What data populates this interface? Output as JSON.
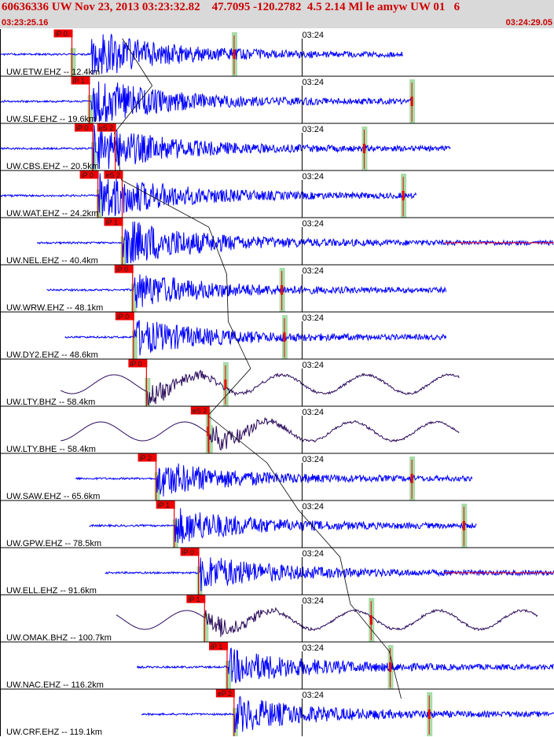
{
  "header": {
    "title": "60636336 UW Nov 23, 2013 03:23:32.82    47.7095 -120.2782  4.5 2.14 Ml le amyw UW 01   6",
    "start_time": "03:23:25.16",
    "end_time": "03:24:29.05"
  },
  "colors": {
    "trace_short_period": "#0000ff",
    "trace_broadband": "#2a0a5a",
    "pick": "#ee0000",
    "window": "#a8dca8",
    "grid": "#000000"
  },
  "chart_data": {
    "type": "line",
    "title": "60636336 UW Nov 23, 2013 03:23:32.82    47.7095 -120.2782  4.5 2.14 Ml le amyw UW 01   6",
    "time_axis": {
      "start_s": 0,
      "end_s": 63.89,
      "minute_mark_label": "03:24",
      "minute_mark_s": 34.84
    },
    "travel_time_curve": "black curve across panels",
    "series": [
      {
        "name": "UW.ETW.EHZ -- 12.4km",
        "component": "short-period",
        "p_label": "iP 0",
        "p_s": 8.2,
        "s_label": "",
        "s_s": null,
        "event_s": 10.5,
        "sig_start_s": 0,
        "sig_end_s": 46.5,
        "end_mark_s": 27.0
      },
      {
        "name": "UW.SLF.EHZ -- 19.6km",
        "component": "short-period",
        "p_label": "iP 1",
        "p_s": 10.2,
        "s_label": "",
        "s_s": null,
        "event_s": 10.5,
        "sig_start_s": 0,
        "sig_end_s": 47.5,
        "end_mark_s": 47.5
      },
      {
        "name": "UW.CBS.EHZ -- 20.5km",
        "component": "short-period",
        "p_label": "iP 0",
        "p_s": 10.6,
        "s_label": "eS 2",
        "s_s": 13.2,
        "event_s": 10.8,
        "sig_start_s": 0,
        "sig_end_s": 52.0,
        "end_mark_s": 42.0
      },
      {
        "name": "UW.WAT.EHZ -- 24.2km",
        "component": "short-period",
        "p_label": "iP 0",
        "p_s": 11.2,
        "s_label": "eS 2",
        "s_s": 14.0,
        "event_s": 11.4,
        "sig_start_s": 0,
        "sig_end_s": 48.0,
        "end_mark_s": 46.5
      },
      {
        "name": "UW.NEL.EHZ -- 40.4km",
        "component": "short-period",
        "p_label": "iP 1",
        "p_s": 14.0,
        "s_label": "",
        "s_s": null,
        "event_s": 14.2,
        "sig_start_s": 4.3,
        "sig_end_s": 63.89,
        "end_mark_s": null
      },
      {
        "name": "UW.WRW.EHZ -- 48.1km",
        "component": "short-period",
        "p_label": "iP 0",
        "p_s": 15.2,
        "s_label": "",
        "s_s": null,
        "event_s": 15.4,
        "sig_start_s": 5.4,
        "sig_end_s": 51.5,
        "end_mark_s": 32.5
      },
      {
        "name": "UW.DY2.EHZ -- 48.6km",
        "component": "short-period",
        "p_label": "iP 0",
        "p_s": 15.3,
        "s_label": "",
        "s_s": null,
        "event_s": 15.5,
        "sig_start_s": 7.5,
        "sig_end_s": 51.5,
        "end_mark_s": 32.8
      },
      {
        "name": "UW.LTY.BHZ -- 58.4km",
        "component": "broadband",
        "p_label": "iP 0",
        "p_s": 16.8,
        "s_label": "",
        "s_s": null,
        "event_s": 17.0,
        "sig_start_s": 7.0,
        "sig_end_s": 53.0,
        "end_mark_s": 26.0
      },
      {
        "name": "UW.LTY.BHE -- 58.4km",
        "component": "broadband",
        "p_label": "",
        "p_s": null,
        "s_label": "eS 2",
        "s_s": 24.0,
        "event_s": 24.2,
        "sig_start_s": 7.0,
        "sig_end_s": 53.0,
        "end_mark_s": 24.0
      },
      {
        "name": "UW.SAW.EHZ -- 65.6km",
        "component": "short-period",
        "p_label": "iP 2",
        "p_s": 17.9,
        "s_label": "",
        "s_s": null,
        "event_s": 18.1,
        "sig_start_s": 8.7,
        "sig_end_s": 54.5,
        "end_mark_s": 47.5
      },
      {
        "name": "UW.GPW.EHZ -- 78.5km",
        "component": "short-period",
        "p_label": "iP 1",
        "p_s": 20.0,
        "s_label": "",
        "s_s": null,
        "event_s": 20.2,
        "sig_start_s": 10.3,
        "sig_end_s": 55.0,
        "end_mark_s": 53.5
      },
      {
        "name": "UW.ELL.EHZ -- 91.6km",
        "component": "short-period",
        "p_label": "iP 0",
        "p_s": 22.8,
        "s_label": "",
        "s_s": null,
        "event_s": 23.0,
        "sig_start_s": 12.1,
        "sig_end_s": 63.89,
        "end_mark_s": null
      },
      {
        "name": "UW.OMAK.BHZ -- 100.7km",
        "component": "broadband",
        "p_label": "iP 1",
        "p_s": 23.5,
        "s_label": "",
        "s_s": null,
        "event_s": 23.7,
        "sig_start_s": 13.4,
        "sig_end_s": 62.0,
        "end_mark_s": 42.8
      },
      {
        "name": "UW.NAC.EHZ -- 116.2km",
        "component": "short-period",
        "p_label": "iP 1",
        "p_s": 26.1,
        "s_label": "",
        "s_s": null,
        "event_s": 26.3,
        "sig_start_s": 15.8,
        "sig_end_s": 63.89,
        "end_mark_s": 45.0
      },
      {
        "name": "UW.CRF.EHZ -- 119.1km",
        "component": "short-period",
        "p_label": "eP 2",
        "p_s": 26.9,
        "s_label": "",
        "s_s": null,
        "event_s": 27.1,
        "sig_start_s": 16.3,
        "sig_end_s": 63.89,
        "end_mark_s": 49.5
      }
    ]
  }
}
